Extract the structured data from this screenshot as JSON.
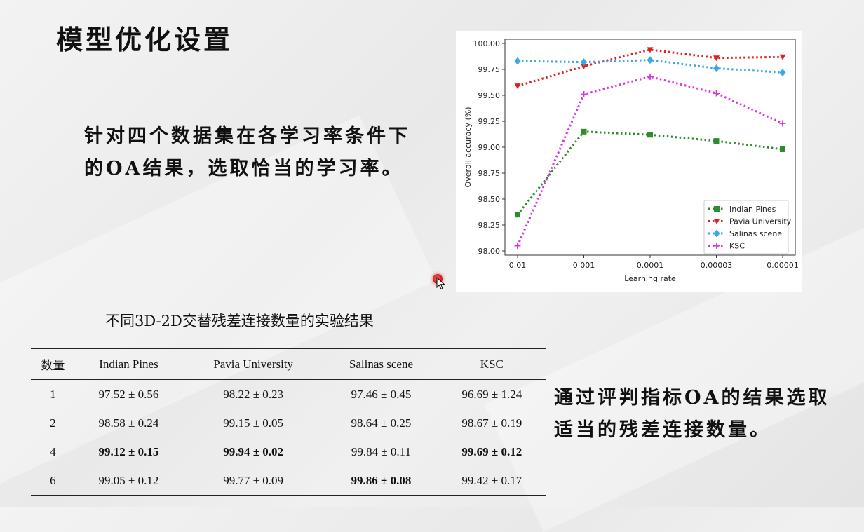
{
  "slide": {
    "title": "模型优化设置",
    "left_text": "针对四个数据集在各学习率条件下的OA结果，选取恰当的学习率。",
    "right_text": "通过评判指标OA的结果选取适当的残差连接数量。"
  },
  "chart_data": {
    "type": "line",
    "title": "",
    "xlabel": "Learning rate",
    "ylabel": "Overall accuracy (%)",
    "categories": [
      "0.01",
      "0.001",
      "0.0001",
      "0.00003",
      "0.00001"
    ],
    "ylim": [
      98.0,
      100.0
    ],
    "yticks": [
      "98.00",
      "98.25",
      "98.50",
      "98.75",
      "99.00",
      "99.25",
      "99.50",
      "99.75",
      "100.00"
    ],
    "grid": false,
    "legend_position": "bottom-right",
    "series": [
      {
        "name": "Indian Pines",
        "values": [
          98.35,
          99.15,
          99.12,
          99.06,
          98.98
        ],
        "color": "#2e8b2e",
        "marker": "square"
      },
      {
        "name": "Pavia University",
        "values": [
          99.59,
          99.78,
          99.94,
          99.86,
          99.87
        ],
        "color": "#e02020",
        "marker": "triangle-down"
      },
      {
        "name": "Salinas scene",
        "values": [
          99.83,
          99.82,
          99.84,
          99.76,
          99.72
        ],
        "color": "#3aa8e8",
        "marker": "diamond"
      },
      {
        "name": "KSC",
        "values": [
          98.05,
          99.51,
          99.68,
          99.52,
          99.23
        ],
        "color": "#dd33dd",
        "marker": "plus"
      }
    ]
  },
  "table": {
    "caption": "不同3D-2D交替残差连接数量的实验结果",
    "headers": [
      "数量",
      "Indian Pines",
      "Pavia University",
      "Salinas scene",
      "KSC"
    ],
    "rows": [
      {
        "cells": [
          "1",
          "97.52 ± 0.56",
          "98.22 ± 0.23",
          "97.46 ± 0.45",
          "96.69 ± 1.24"
        ],
        "bold": [
          false,
          false,
          false,
          false,
          false
        ]
      },
      {
        "cells": [
          "2",
          "98.58 ± 0.24",
          "99.15 ± 0.05",
          "98.64 ± 0.25",
          "98.67 ± 0.19"
        ],
        "bold": [
          false,
          false,
          false,
          false,
          false
        ]
      },
      {
        "cells": [
          "4",
          "99.12 ± 0.15",
          "99.94 ± 0.02",
          "99.84 ± 0.11",
          "99.69 ± 0.12"
        ],
        "bold": [
          false,
          true,
          true,
          false,
          true
        ]
      },
      {
        "cells": [
          "6",
          "99.05 ± 0.12",
          "99.77 ± 0.09",
          "99.86 ± 0.08",
          "99.42 ± 0.17"
        ],
        "bold": [
          false,
          false,
          false,
          true,
          false
        ]
      }
    ]
  }
}
